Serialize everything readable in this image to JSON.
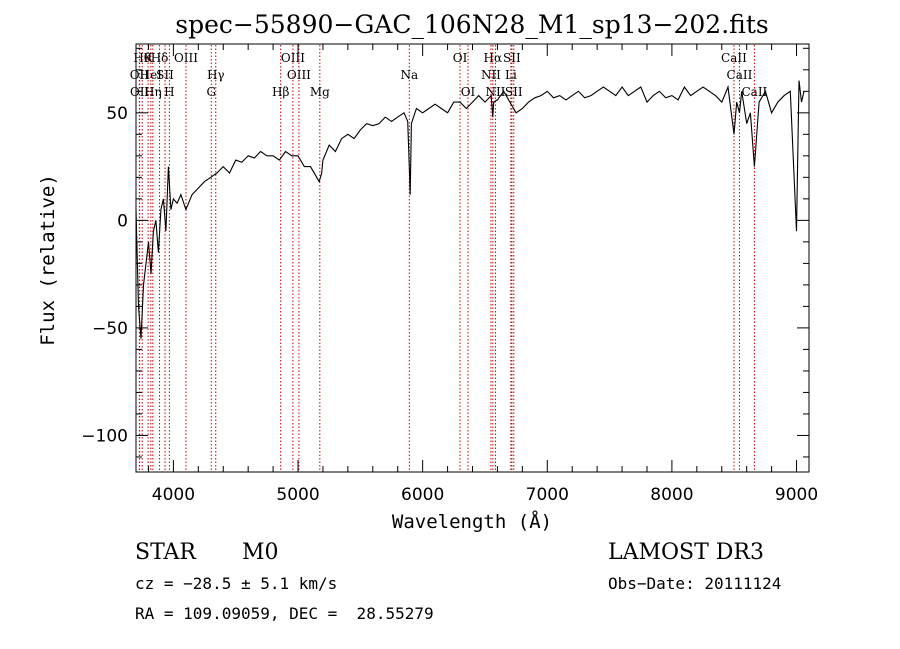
{
  "chart_data": {
    "type": "line",
    "title": "spec−55890−GAC_106N28_M1_sp13−202.fits",
    "xlabel": "Wavelength (Å)",
    "ylabel": "Flux (relative)",
    "xlim": [
      3700,
      9100
    ],
    "ylim": [
      -117,
      82
    ],
    "x_ticks": [
      4000,
      5000,
      6000,
      7000,
      8000,
      9000
    ],
    "y_ticks": [
      -100,
      -50,
      0,
      50
    ],
    "x_tick_labels": [
      "4000",
      "5000",
      "6000",
      "7000",
      "8000",
      "9000"
    ],
    "y_tick_labels": [
      "−100",
      "−50",
      "0",
      "50"
    ],
    "line_color": "#000000",
    "marker_color": "#cc0000",
    "series": [
      {
        "name": "flux",
        "x": [
          3700,
          3720,
          3740,
          3760,
          3780,
          3800,
          3820,
          3840,
          3860,
          3880,
          3900,
          3920,
          3940,
          3960,
          3980,
          4000,
          4030,
          4060,
          4100,
          4150,
          4200,
          4250,
          4300,
          4350,
          4400,
          4450,
          4500,
          4550,
          4600,
          4650,
          4700,
          4750,
          4800,
          4850,
          4900,
          4950,
          5000,
          5050,
          5100,
          5150,
          5170,
          5190,
          5200,
          5250,
          5300,
          5350,
          5400,
          5450,
          5500,
          5550,
          5600,
          5650,
          5700,
          5750,
          5800,
          5850,
          5880,
          5893,
          5900,
          5910,
          5950,
          6000,
          6050,
          6100,
          6150,
          6200,
          6250,
          6300,
          6350,
          6400,
          6450,
          6500,
          6550,
          6563,
          6570,
          6600,
          6650,
          6700,
          6750,
          6800,
          6850,
          6900,
          6950,
          7000,
          7050,
          7100,
          7150,
          7200,
          7250,
          7300,
          7350,
          7400,
          7450,
          7500,
          7550,
          7600,
          7650,
          7700,
          7750,
          7800,
          7850,
          7900,
          7950,
          8000,
          8050,
          8100,
          8150,
          8200,
          8250,
          8300,
          8350,
          8400,
          8450,
          8498,
          8520,
          8542,
          8560,
          8600,
          8630,
          8662,
          8700,
          8750,
          8800,
          8850,
          8900,
          8950,
          9000,
          9020,
          9040,
          9060
        ],
        "y": [
          5,
          -40,
          -55,
          -30,
          -20,
          -10,
          -25,
          -5,
          0,
          -15,
          5,
          10,
          -5,
          25,
          5,
          10,
          8,
          12,
          5,
          12,
          15,
          18,
          20,
          22,
          25,
          22,
          28,
          27,
          30,
          29,
          32,
          30,
          30,
          28,
          32,
          30,
          30,
          25,
          25,
          20,
          18,
          22,
          28,
          35,
          32,
          38,
          40,
          38,
          42,
          45,
          44,
          45,
          48,
          46,
          48,
          50,
          46,
          25,
          12,
          45,
          52,
          50,
          52,
          54,
          52,
          50,
          55,
          55,
          52,
          55,
          58,
          55,
          58,
          48,
          55,
          56,
          60,
          55,
          50,
          52,
          55,
          57,
          58,
          60,
          57,
          58,
          56,
          58,
          60,
          57,
          58,
          60,
          62,
          60,
          58,
          62,
          58,
          60,
          62,
          55,
          58,
          60,
          57,
          58,
          56,
          62,
          58,
          60,
          62,
          60,
          58,
          55,
          62,
          40,
          55,
          50,
          60,
          45,
          50,
          25,
          55,
          60,
          50,
          55,
          58,
          60,
          -5,
          65,
          55,
          60
        ]
      }
    ],
    "line_markers": [
      {
        "wl": 3750,
        "row": 0,
        "label": "Hθ"
      },
      {
        "wl": 3797,
        "row": 0,
        "label": "K"
      },
      {
        "wl": 3889,
        "row": 0,
        "label": "Hδ"
      },
      {
        "wl": 4101,
        "row": 0,
        "label": "OIII"
      },
      {
        "wl": 4959,
        "row": 0,
        "label": "OIII"
      },
      {
        "wl": 6300,
        "row": 0,
        "label": "OI"
      },
      {
        "wl": 6563,
        "row": 0,
        "label": "Hα"
      },
      {
        "wl": 6716,
        "row": 0,
        "label": "SII"
      },
      {
        "wl": 8498,
        "row": 0,
        "label": "CaII"
      },
      {
        "wl": 3727,
        "row": 1,
        "label": "OII"
      },
      {
        "wl": 3819,
        "row": 1,
        "label": "HeI"
      },
      {
        "wl": 3933,
        "row": 1,
        "label": "SII"
      },
      {
        "wl": 4340,
        "row": 1,
        "label": "Hγ"
      },
      {
        "wl": 5007,
        "row": 1,
        "label": "OIII"
      },
      {
        "wl": 5893,
        "row": 1,
        "label": "Na"
      },
      {
        "wl": 6548,
        "row": 1,
        "label": "NII"
      },
      {
        "wl": 6708,
        "row": 1,
        "label": "Li"
      },
      {
        "wl": 8542,
        "row": 1,
        "label": "CaII"
      },
      {
        "wl": 3729,
        "row": 2,
        "label": "OII"
      },
      {
        "wl": 3835,
        "row": 2,
        "label": "Hη"
      },
      {
        "wl": 3968,
        "row": 2,
        "label": "H"
      },
      {
        "wl": 4304,
        "row": 2,
        "label": "G"
      },
      {
        "wl": 4861,
        "row": 2,
        "label": "Hβ"
      },
      {
        "wl": 5175,
        "row": 2,
        "label": "Mg"
      },
      {
        "wl": 6364,
        "row": 2,
        "label": "OI"
      },
      {
        "wl": 6584,
        "row": 2,
        "label": "NII"
      },
      {
        "wl": 6731,
        "row": 2,
        "label": "SII"
      },
      {
        "wl": 8662,
        "row": 2,
        "label": "CaII"
      }
    ]
  },
  "info": {
    "class": "STAR",
    "subclass": "M0",
    "survey": "LAMOST DR3",
    "cz": "cz = −28.5 ± 5.1 km/s",
    "obs_date": "Obs−Date: 20111124",
    "radec": "RA = 109.09059, DEC =  28.55279"
  }
}
